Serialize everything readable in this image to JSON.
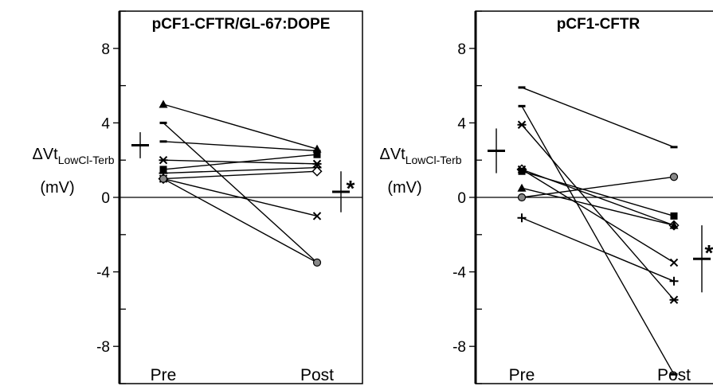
{
  "chart_data": [
    {
      "type": "line",
      "title": "pCF1-CFTR/GL-67:DOPE",
      "ylabel_main": "ΔVt",
      "ylabel_sub": "LowCl-Terb",
      "ylabel_unit": "(mV)",
      "categories": [
        "Pre",
        "Post"
      ],
      "ylim": [
        -10,
        10
      ],
      "yticks": [
        8,
        4,
        0,
        -4,
        -8
      ],
      "ytick_labels": [
        "8",
        "4",
        "0",
        "-4",
        "-8"
      ],
      "significance": "*",
      "mean_pre": {
        "mean": 2.8,
        "err": 0.7
      },
      "mean_post": {
        "mean": 0.3,
        "err": 1.1
      },
      "series": [
        {
          "marker": "triangle",
          "values": [
            5.0,
            2.6
          ]
        },
        {
          "marker": "dash",
          "values": [
            4.0,
            -3.5
          ]
        },
        {
          "marker": "dash",
          "values": [
            3.0,
            2.5
          ]
        },
        {
          "marker": "asterisk",
          "values": [
            2.0,
            1.8
          ]
        },
        {
          "marker": "square",
          "values": [
            1.5,
            2.3
          ]
        },
        {
          "marker": "plus",
          "values": [
            1.3,
            1.6
          ]
        },
        {
          "marker": "diamond",
          "values": [
            1.0,
            1.4
          ]
        },
        {
          "marker": "x",
          "values": [
            1.0,
            -1.0
          ]
        },
        {
          "marker": "circle",
          "values": [
            1.0,
            -3.5
          ]
        }
      ]
    },
    {
      "type": "line",
      "title": "pCF1-CFTR",
      "ylabel_main": "ΔVt",
      "ylabel_sub": "LowCl-Terb",
      "ylabel_unit": "(mV)",
      "categories": [
        "Pre",
        "Post"
      ],
      "ylim": [
        -10,
        10
      ],
      "yticks": [
        8,
        4,
        0,
        -4,
        -8
      ],
      "ytick_labels": [
        "8",
        "4",
        "0",
        "-4",
        "-8"
      ],
      "significance": "*",
      "mean_pre": {
        "mean": 2.5,
        "err": 1.2
      },
      "mean_post": {
        "mean": -3.3,
        "err": 1.8
      },
      "series": [
        {
          "marker": "dash",
          "values": [
            5.9,
            2.7
          ]
        },
        {
          "marker": "dash",
          "values": [
            4.9,
            -9.5
          ]
        },
        {
          "marker": "asterisk",
          "values": [
            3.9,
            -5.5
          ]
        },
        {
          "marker": "diamond",
          "values": [
            1.5,
            -1.5
          ]
        },
        {
          "marker": "x",
          "values": [
            1.5,
            -3.5
          ]
        },
        {
          "marker": "square",
          "values": [
            1.4,
            -1.0
          ]
        },
        {
          "marker": "triangle",
          "values": [
            0.5,
            -1.5
          ]
        },
        {
          "marker": "circle",
          "values": [
            0.0,
            1.1
          ]
        },
        {
          "marker": "plus",
          "values": [
            -1.1,
            -4.5
          ]
        }
      ]
    }
  ]
}
